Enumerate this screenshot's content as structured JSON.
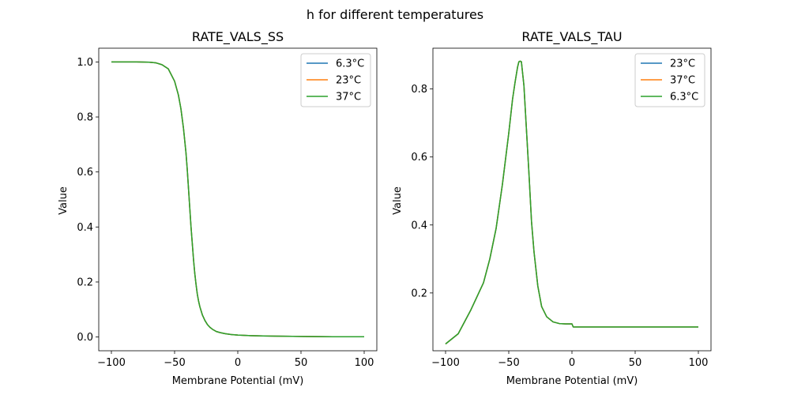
{
  "figure": {
    "suptitle": "h for different temperatures"
  },
  "chart_data": [
    {
      "type": "line",
      "title": "RATE_VALS_SS",
      "xlabel": "Membrane Potential (mV)",
      "ylabel": "Value",
      "xlim": [
        -110,
        110
      ],
      "ylim": [
        -0.05,
        1.05
      ],
      "xticks": [
        -100,
        -50,
        0,
        50,
        100
      ],
      "xtick_labels": [
        "−100",
        "−50",
        "0",
        "50",
        "100"
      ],
      "yticks": [
        0.0,
        0.2,
        0.4,
        0.6,
        0.8,
        1.0
      ],
      "ytick_labels": [
        "0.0",
        "0.2",
        "0.4",
        "0.6",
        "0.8",
        "1.0"
      ],
      "grid": false,
      "legend": "upper-right",
      "x": [
        -100,
        -90,
        -80,
        -70,
        -65,
        -60,
        -55,
        -50,
        -47,
        -45,
        -43,
        -41,
        -40,
        -39,
        -38,
        -37,
        -36,
        -35,
        -34,
        -33,
        -32,
        -31,
        -30,
        -28,
        -26,
        -24,
        -22,
        -20,
        -17,
        -14,
        -10,
        -5,
        0,
        10,
        20,
        30,
        50,
        75,
        100
      ],
      "series": [
        {
          "name": "6.3°C",
          "color": "#1f77b4",
          "values": [
            1.0,
            1.0,
            1.0,
            0.999,
            0.997,
            0.99,
            0.975,
            0.93,
            0.88,
            0.83,
            0.76,
            0.67,
            0.61,
            0.54,
            0.47,
            0.4,
            0.34,
            0.28,
            0.23,
            0.19,
            0.155,
            0.13,
            0.11,
            0.08,
            0.06,
            0.045,
            0.035,
            0.028,
            0.02,
            0.016,
            0.012,
            0.009,
            0.007,
            0.005,
            0.004,
            0.003,
            0.002,
            0.001,
            0.001
          ]
        },
        {
          "name": "23°C",
          "color": "#ff7f0e",
          "values": [
            1.0,
            1.0,
            1.0,
            0.999,
            0.997,
            0.99,
            0.975,
            0.93,
            0.88,
            0.83,
            0.76,
            0.67,
            0.61,
            0.54,
            0.47,
            0.4,
            0.34,
            0.28,
            0.23,
            0.19,
            0.155,
            0.13,
            0.11,
            0.08,
            0.06,
            0.045,
            0.035,
            0.028,
            0.02,
            0.016,
            0.012,
            0.009,
            0.007,
            0.005,
            0.004,
            0.003,
            0.002,
            0.001,
            0.001
          ]
        },
        {
          "name": "37°C",
          "color": "#2ca02c",
          "values": [
            1.0,
            1.0,
            1.0,
            0.999,
            0.997,
            0.99,
            0.975,
            0.93,
            0.88,
            0.83,
            0.76,
            0.67,
            0.61,
            0.54,
            0.47,
            0.4,
            0.34,
            0.28,
            0.23,
            0.19,
            0.155,
            0.13,
            0.11,
            0.08,
            0.06,
            0.045,
            0.035,
            0.028,
            0.02,
            0.016,
            0.012,
            0.009,
            0.007,
            0.005,
            0.004,
            0.003,
            0.002,
            0.001,
            0.001
          ]
        }
      ]
    },
    {
      "type": "line",
      "title": "RATE_VALS_TAU",
      "xlabel": "Membrane Potential (mV)",
      "ylabel": "Value",
      "xlim": [
        -110,
        110
      ],
      "ylim": [
        0.03,
        0.92
      ],
      "xticks": [
        -100,
        -50,
        0,
        50,
        100
      ],
      "xtick_labels": [
        "−100",
        "−50",
        "0",
        "50",
        "100"
      ],
      "yticks": [
        0.2,
        0.4,
        0.6,
        0.8
      ],
      "ytick_labels": [
        "0.2",
        "0.4",
        "0.6",
        "0.8"
      ],
      "grid": false,
      "legend": "upper-right",
      "x": [
        -100,
        -90,
        -80,
        -70,
        -65,
        -60,
        -55,
        -50,
        -47,
        -45,
        -43,
        -42,
        -41,
        -40,
        -38,
        -36,
        -34,
        -32,
        -30,
        -27,
        -24,
        -20,
        -15,
        -10,
        -5,
        0,
        1,
        2,
        5,
        10,
        20,
        50,
        75,
        100
      ],
      "series": [
        {
          "name": "23°C",
          "color": "#1f77b4",
          "values": [
            0.05,
            0.08,
            0.15,
            0.23,
            0.3,
            0.39,
            0.52,
            0.67,
            0.77,
            0.82,
            0.865,
            0.88,
            0.882,
            0.88,
            0.81,
            0.68,
            0.55,
            0.41,
            0.32,
            0.22,
            0.16,
            0.13,
            0.115,
            0.11,
            0.109,
            0.109,
            0.1,
            0.1,
            0.1,
            0.1,
            0.1,
            0.1,
            0.1,
            0.1
          ]
        },
        {
          "name": "37°C",
          "color": "#ff7f0e",
          "values": [
            0.05,
            0.08,
            0.15,
            0.23,
            0.3,
            0.39,
            0.52,
            0.67,
            0.77,
            0.82,
            0.865,
            0.88,
            0.882,
            0.88,
            0.81,
            0.68,
            0.55,
            0.41,
            0.32,
            0.22,
            0.16,
            0.13,
            0.115,
            0.11,
            0.109,
            0.109,
            0.1,
            0.1,
            0.1,
            0.1,
            0.1,
            0.1,
            0.1,
            0.1
          ]
        },
        {
          "name": "6.3°C",
          "color": "#2ca02c",
          "values": [
            0.05,
            0.08,
            0.15,
            0.23,
            0.3,
            0.39,
            0.52,
            0.67,
            0.77,
            0.82,
            0.865,
            0.88,
            0.882,
            0.88,
            0.81,
            0.68,
            0.55,
            0.41,
            0.32,
            0.22,
            0.16,
            0.13,
            0.115,
            0.11,
            0.109,
            0.109,
            0.1,
            0.1,
            0.1,
            0.1,
            0.1,
            0.1,
            0.1,
            0.1
          ]
        }
      ]
    }
  ]
}
